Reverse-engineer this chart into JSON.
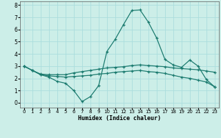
{
  "xlabel": "Humidex (Indice chaleur)",
  "background_color": "#cceee8",
  "grid_color": "#aadddd",
  "line_color": "#1a7a6e",
  "xlim": [
    -0.5,
    23.5
  ],
  "ylim": [
    -0.4,
    8.3
  ],
  "xticks": [
    0,
    1,
    2,
    3,
    4,
    5,
    6,
    7,
    8,
    9,
    10,
    11,
    12,
    13,
    14,
    15,
    16,
    17,
    18,
    19,
    20,
    21,
    22,
    23
  ],
  "yticks": [
    0,
    1,
    2,
    3,
    4,
    5,
    6,
    7,
    8
  ],
  "line1_x": [
    0,
    1,
    2,
    3,
    4,
    5,
    6,
    7,
    8,
    9,
    10,
    11,
    12,
    13,
    14,
    15,
    16,
    17,
    18,
    19,
    20,
    21,
    22,
    23
  ],
  "line1_y": [
    3.0,
    2.65,
    2.3,
    2.1,
    1.75,
    1.6,
    1.0,
    0.1,
    0.5,
    1.4,
    4.2,
    5.2,
    6.4,
    7.55,
    7.6,
    6.6,
    5.3,
    3.55,
    3.1,
    2.9,
    3.5,
    3.0,
    1.9,
    1.3
  ],
  "line2_x": [
    0,
    1,
    2,
    3,
    4,
    5,
    6,
    7,
    8,
    9,
    10,
    11,
    12,
    13,
    14,
    15,
    16,
    17,
    18,
    19,
    20,
    21,
    22,
    23
  ],
  "line2_y": [
    3.0,
    2.65,
    2.35,
    2.3,
    2.3,
    2.3,
    2.45,
    2.55,
    2.65,
    2.75,
    2.85,
    2.9,
    2.95,
    3.05,
    3.1,
    3.05,
    3.0,
    2.95,
    2.85,
    2.8,
    2.75,
    2.7,
    2.6,
    2.5
  ],
  "line3_x": [
    0,
    1,
    2,
    3,
    4,
    5,
    6,
    7,
    8,
    9,
    10,
    11,
    12,
    13,
    14,
    15,
    16,
    17,
    18,
    19,
    20,
    21,
    22,
    23
  ],
  "line3_y": [
    3.0,
    2.65,
    2.3,
    2.2,
    2.15,
    2.1,
    2.15,
    2.2,
    2.25,
    2.35,
    2.4,
    2.5,
    2.55,
    2.6,
    2.65,
    2.55,
    2.5,
    2.4,
    2.25,
    2.1,
    2.0,
    1.85,
    1.7,
    1.3
  ]
}
